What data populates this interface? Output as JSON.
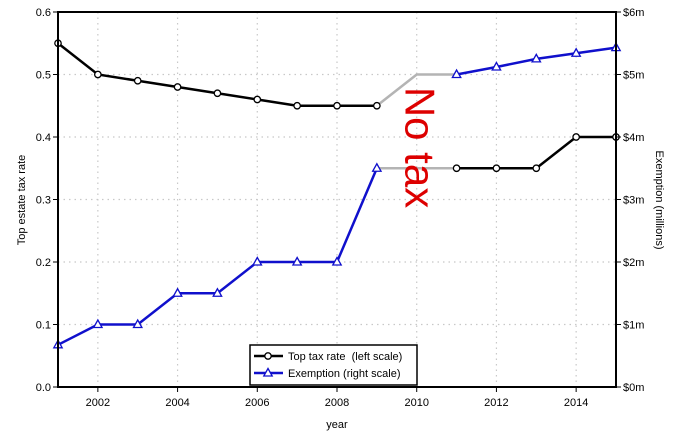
{
  "chart_data": {
    "type": "line",
    "xlabel": "year",
    "ylabel_left": "Top estate tax rate",
    "ylabel_right": "Exemption (millions)",
    "xlim": [
      2001,
      2015
    ],
    "ylim_left": [
      0,
      0.6
    ],
    "ylim_right": [
      0,
      6
    ],
    "x_ticks": [
      2002,
      2004,
      2006,
      2008,
      2010,
      2012,
      2014
    ],
    "y_ticks_left": [
      "0.0",
      "0.1",
      "0.2",
      "0.3",
      "0.4",
      "0.5",
      "0.6"
    ],
    "y_ticks_right": [
      "$0m",
      "$1m",
      "$2m",
      "$3m",
      "$4m",
      "$5m",
      "$6m"
    ],
    "grid": true,
    "legend_position": "bottom-center",
    "annotation": {
      "text": "No tax",
      "x": 2010,
      "color": "#dd0000"
    },
    "gap_color": "#b4b4b4",
    "series": [
      {
        "name": "Top tax rate  (left scale)",
        "axis": "left",
        "color": "#000000",
        "marker": "circle",
        "x": [
          2001,
          2002,
          2003,
          2004,
          2005,
          2006,
          2007,
          2008,
          2009,
          2011,
          2012,
          2013,
          2014,
          2015
        ],
        "values": [
          0.55,
          0.5,
          0.49,
          0.48,
          0.47,
          0.46,
          0.45,
          0.45,
          0.45,
          0.35,
          0.35,
          0.35,
          0.4,
          0.4
        ]
      },
      {
        "name": "Exemption (right scale)",
        "axis": "right",
        "color": "#1010cc",
        "marker": "triangle",
        "x": [
          2001,
          2002,
          2003,
          2004,
          2005,
          2006,
          2007,
          2008,
          2009,
          2010,
          2011,
          2012,
          2013,
          2014,
          2015
        ],
        "values": [
          0.675,
          1.0,
          1.0,
          1.5,
          1.5,
          2.0,
          2.0,
          2.0,
          3.5,
          5.0,
          5.0,
          5.12,
          5.25,
          5.34,
          5.43
        ]
      }
    ]
  }
}
